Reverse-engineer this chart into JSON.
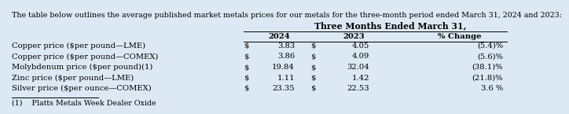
{
  "intro_text": "The table below outlines the average published market metals prices for our metals for the three-month period ended March 31, 2024 and 2023:",
  "header1": "Three Months Ended March 31,",
  "col_headers": [
    "2024",
    "2023",
    "% Change"
  ],
  "rows": [
    {
      "label": "Copper price ($per pound—LME)",
      "val2024": "3.83",
      "val2023": "4.05",
      "pct": "(5.4)%"
    },
    {
      "label": "Copper price ($per pound—COMEX)",
      "val2024": "3.86",
      "val2023": "4.09",
      "pct": "(5.6)%"
    },
    {
      "label": "Molybdenum price ($per pound)(1)",
      "val2024": "19.84",
      "val2023": "32.04",
      "pct": "(38.1)%"
    },
    {
      "label": "Zinc price ($per pound—LME)",
      "val2024": "1.11",
      "val2023": "1.42",
      "pct": "(21.8)%"
    },
    {
      "label": "Silver price ($per ounce—COMEX)",
      "val2024": "23.35",
      "val2023": "22.53",
      "pct": "3.6 %"
    }
  ],
  "footnote": "(1)    Platts Metals Week Dealer Oxide",
  "bg_color": "#dce9f5",
  "text_color": "#000000",
  "intro_fontsize": 6.8,
  "table_fontsize": 7.2,
  "header_fontsize": 7.8
}
